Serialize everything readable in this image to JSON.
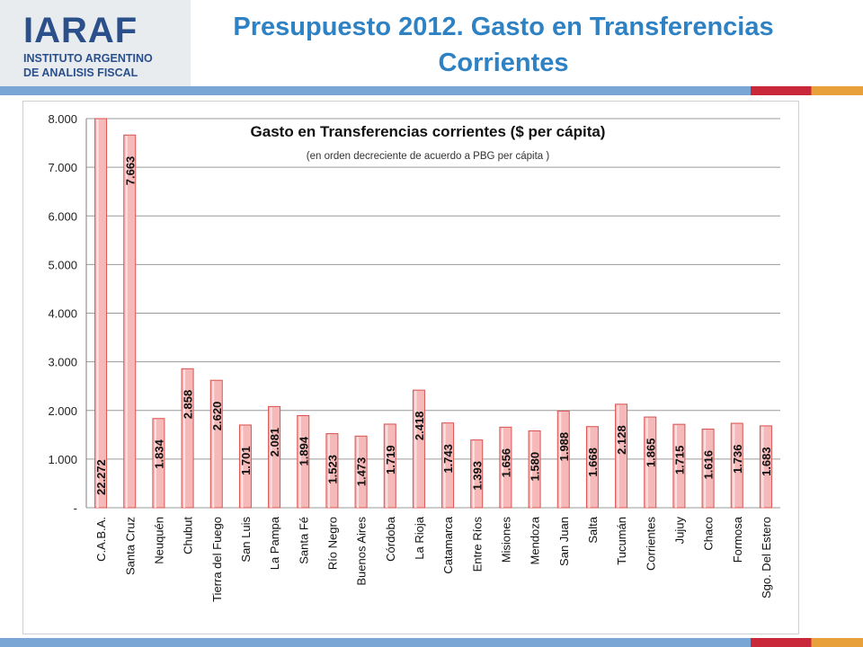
{
  "header": {
    "logo_text": "IARAF",
    "logo_line1": "INSTITUTO ARGENTINO",
    "logo_line2": "DE ANALISIS FISCAL",
    "title_line1": "Presupuesto 2012. Gasto en Transferencias",
    "title_line2": "Corrientes"
  },
  "colors": {
    "title": "#2e82c4",
    "logo": "#2a4f8a",
    "strip_blue": "#7aa6d6",
    "strip_red": "#c8283a",
    "strip_orange": "#e8a13a",
    "bar_fill": "#f6b9b9",
    "bar_stroke": "#d9534f"
  },
  "chart_data": {
    "type": "bar",
    "title": "Gasto en Transferencias corrientes ($ per cápita)",
    "subtitle": "(en orden decreciente de acuerdo a PBG per cápita )",
    "categories": [
      "C.A.B.A.",
      "Santa Cruz",
      "Neuquén",
      "Chubut",
      "Tierra del Fuego",
      "San Luis",
      "La Pampa",
      "Santa Fé",
      "Río Negro",
      "Buenos Aires",
      "Córdoba",
      "La Rioja",
      "Catamarca",
      "Entre Ríos",
      "Misiones",
      "Mendoza",
      "San Juan",
      "Salta",
      "Tucumán",
      "Corrientes",
      "Jujuy",
      "Chaco",
      "Formosa",
      "Sgo. Del Estero"
    ],
    "values": [
      22272,
      7663,
      1834,
      2858,
      2620,
      1701,
      2081,
      1894,
      1523,
      1473,
      1719,
      2418,
      1743,
      1393,
      1656,
      1580,
      1988,
      1668,
      2128,
      1865,
      1715,
      1616,
      1736,
      1683
    ],
    "value_labels": [
      "22.272",
      "7.663",
      "1.834",
      "2.858",
      "2.620",
      "1.701",
      "2.081",
      "1.894",
      "1.523",
      "1.473",
      "1.719",
      "2.418",
      "1.743",
      "1.393",
      "1.656",
      "1.580",
      "1.988",
      "1.668",
      "2.128",
      "1.865",
      "1.715",
      "1.616",
      "1.736",
      "1.683"
    ],
    "ylim": [
      0,
      8000
    ],
    "y_ticks": [
      0,
      1000,
      2000,
      3000,
      4000,
      5000,
      6000,
      7000,
      8000
    ],
    "y_tick_labels": [
      "-",
      "1.000",
      "2.000",
      "3.000",
      "4.000",
      "5.000",
      "6.000",
      "7.000",
      "8.000"
    ],
    "grid": true,
    "legend": "none"
  }
}
